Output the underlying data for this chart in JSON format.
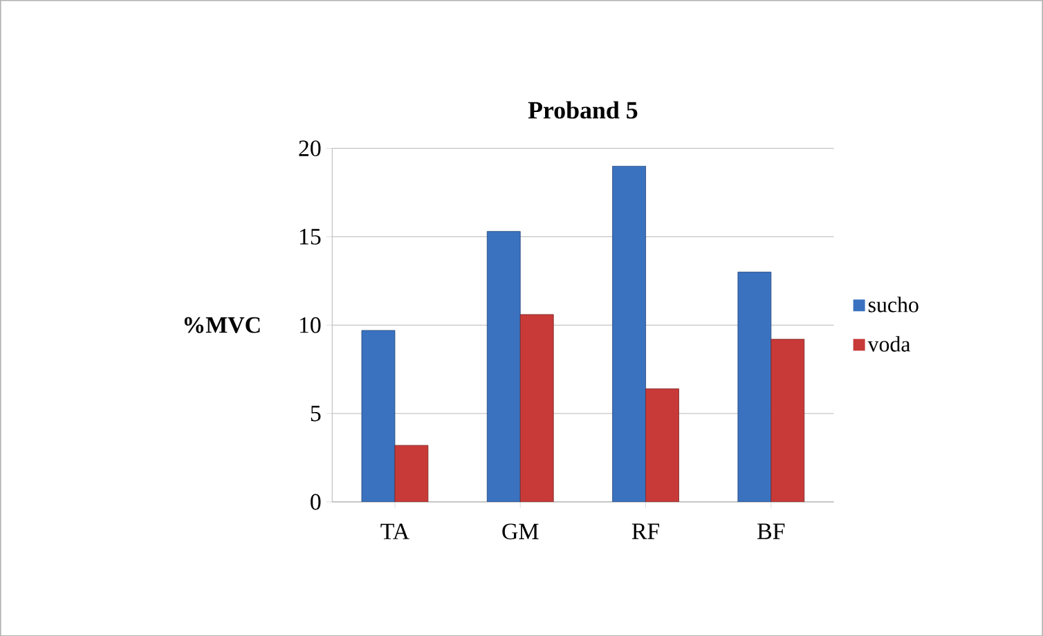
{
  "chart_data": {
    "type": "bar",
    "title": "Proband 5",
    "ylabel": "%MVC",
    "categories": [
      "TA",
      "GM",
      "RF",
      "BF"
    ],
    "series": [
      {
        "name": "sucho",
        "color": "#3a72c0",
        "values": [
          9.7,
          15.3,
          19.0,
          13.0
        ]
      },
      {
        "name": "voda",
        "color": "#c83a38",
        "values": [
          3.2,
          10.6,
          6.4,
          9.2
        ]
      }
    ],
    "ylim": [
      0,
      20
    ],
    "yticks": [
      0,
      5,
      10,
      15,
      20
    ],
    "grid": "y",
    "legend": "right"
  }
}
